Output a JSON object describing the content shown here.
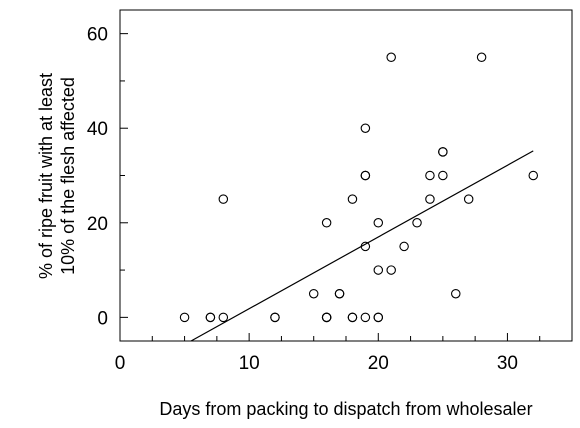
{
  "chart_data": {
    "type": "scatter",
    "title": "",
    "xlabel": "Days from packing to dispatch from wholesaler",
    "ylabel_lines": [
      "% of ripe fruit with at least",
      "10% of the flesh affected"
    ],
    "xlim": [
      0,
      35
    ],
    "ylim": [
      -5,
      65
    ],
    "x_ticks": [
      0,
      10,
      20,
      30
    ],
    "y_ticks": [
      0,
      20,
      40,
      60
    ],
    "x_tick_labels": [
      "0",
      "10",
      "20",
      "30"
    ],
    "y_tick_labels": [
      "0",
      "20",
      "40",
      "60"
    ],
    "x_minor_tick_step": 2.5,
    "y_minor_tick_step": 10,
    "grid": false,
    "series": [
      {
        "marker": "open-circle",
        "x": [
          5,
          7,
          7,
          8,
          8,
          12,
          12,
          15,
          16,
          16,
          16,
          16,
          17,
          17,
          18,
          18,
          18,
          19,
          19,
          19,
          19,
          19,
          20,
          20,
          20,
          20,
          21,
          21,
          22,
          23,
          24,
          24,
          25,
          25,
          25,
          26,
          27,
          28,
          32
        ],
        "y": [
          0,
          0,
          0,
          0,
          25,
          0,
          0,
          5,
          0,
          0,
          0,
          20,
          5,
          5,
          0,
          0,
          25,
          0,
          15,
          30,
          30,
          40,
          0,
          0,
          10,
          20,
          10,
          55,
          15,
          20,
          25,
          30,
          30,
          35,
          35,
          5,
          25,
          55,
          30
        ]
      }
    ],
    "trendline": {
      "x": [
        5.5,
        32
      ],
      "y": [
        -5,
        35.2
      ]
    }
  }
}
